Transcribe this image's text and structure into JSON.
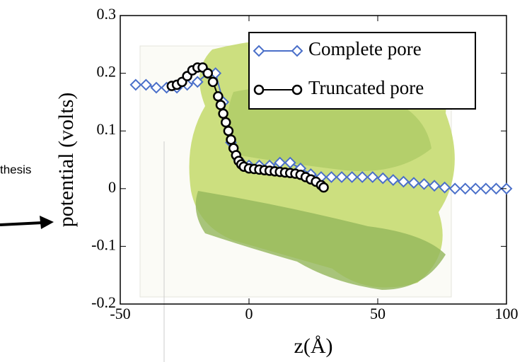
{
  "side_text": "thesis",
  "chart_data": {
    "type": "line",
    "xlabel": "z(Å)",
    "ylabel": "potential (volts)",
    "xlim": [
      -50,
      100
    ],
    "xticks": [
      -50,
      0,
      50,
      100
    ],
    "ylim": [
      -0.2,
      0.3
    ],
    "yticks": [
      -0.2,
      -0.1,
      0,
      0.1,
      0.2,
      0.3
    ],
    "legend": "upper right",
    "series": [
      {
        "name": "Complete pore",
        "color": "#4a6fc9",
        "marker": "diamond",
        "x": [
          -44,
          -40,
          -36,
          -32,
          -28,
          -24,
          -20,
          -16,
          -13,
          -10,
          -7,
          -4,
          0,
          4,
          8,
          12,
          16,
          20,
          24,
          28,
          32,
          36,
          40,
          44,
          48,
          52,
          56,
          60,
          64,
          68,
          72,
          76,
          80,
          84,
          88,
          92,
          96,
          100
        ],
        "values": [
          0.18,
          0.18,
          0.175,
          0.175,
          0.175,
          0.18,
          0.185,
          0.2,
          0.2,
          0.15,
          0.08,
          0.05,
          0.04,
          0.04,
          0.04,
          0.045,
          0.045,
          0.035,
          0.025,
          0.02,
          0.02,
          0.02,
          0.02,
          0.02,
          0.02,
          0.018,
          0.015,
          0.012,
          0.01,
          0.008,
          0.005,
          0.002,
          0,
          0,
          0,
          0,
          0,
          0
        ]
      },
      {
        "name": "Truncated pore",
        "color": "#000000",
        "marker": "circle",
        "x": [
          -30,
          -28,
          -26,
          -24,
          -22,
          -20,
          -18,
          -16,
          -14,
          -12,
          -11,
          -10,
          -9,
          -8,
          -7,
          -6,
          -5,
          -4,
          -3,
          -2,
          0,
          2,
          4,
          6,
          8,
          10,
          12,
          14,
          16,
          18,
          20,
          22,
          24,
          26,
          28,
          29
        ],
        "values": [
          0.178,
          0.18,
          0.185,
          0.195,
          0.205,
          0.21,
          0.21,
          0.2,
          0.185,
          0.16,
          0.145,
          0.13,
          0.115,
          0.1,
          0.085,
          0.07,
          0.058,
          0.048,
          0.042,
          0.038,
          0.035,
          0.034,
          0.033,
          0.032,
          0.031,
          0.03,
          0.029,
          0.028,
          0.027,
          0.026,
          0.024,
          0.02,
          0.016,
          0.012,
          0.006,
          0.002
        ]
      }
    ]
  }
}
